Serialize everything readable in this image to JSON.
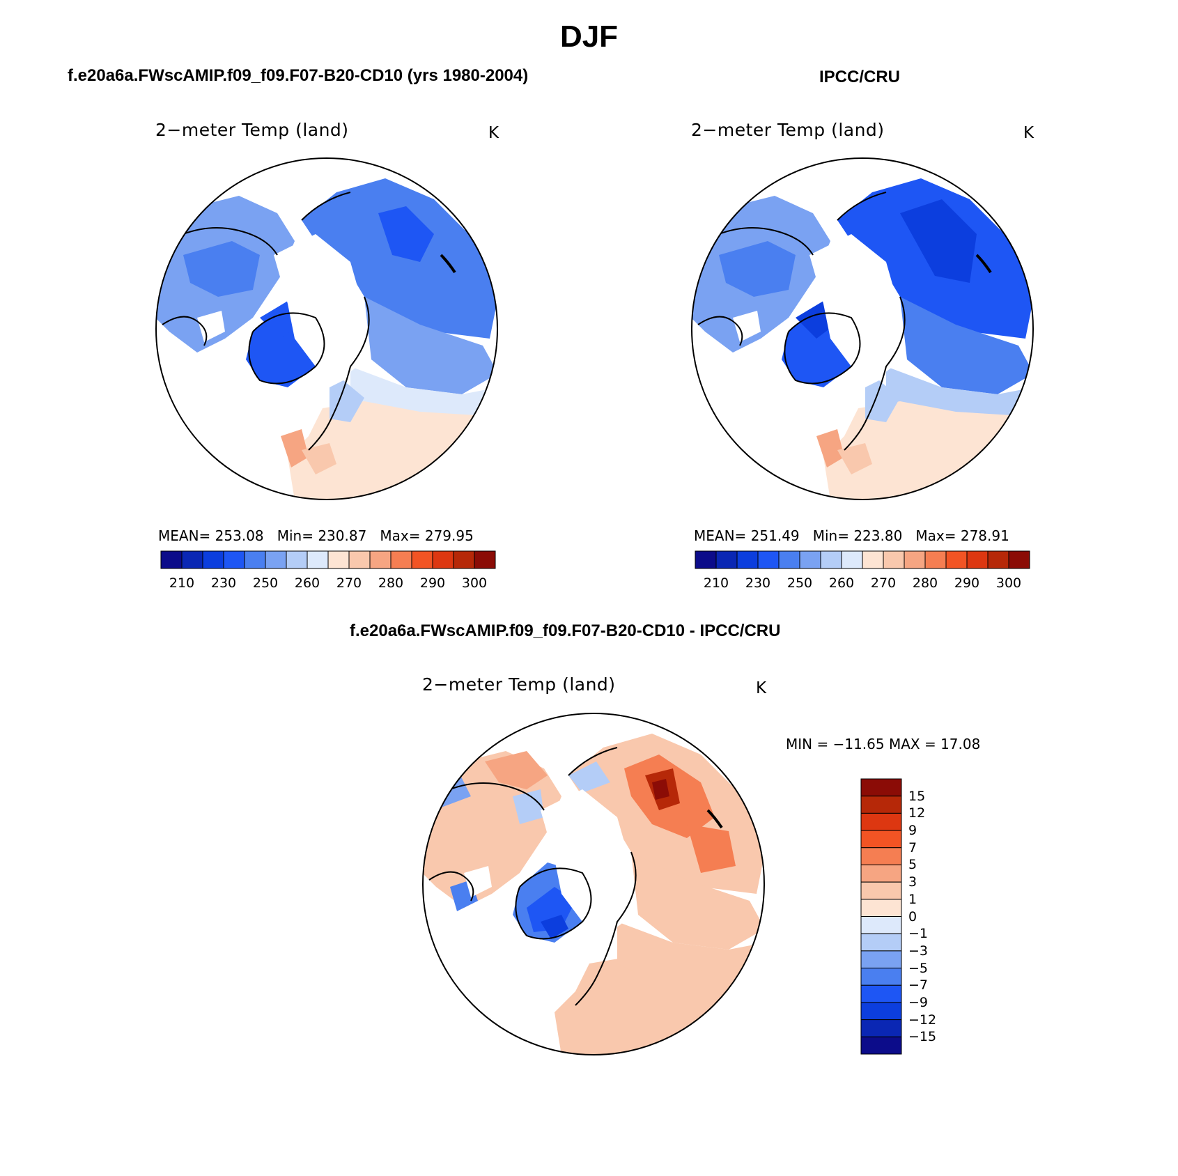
{
  "title": "DJF",
  "variable": "2−meter Temp (land)",
  "units": "K",
  "panels": {
    "model": {
      "title": "f.e20a6a.FWscAMIP.f09_f09.F07-B20-CD10 (yrs 1980-2004)",
      "stats": {
        "mean_label": "MEAN=",
        "mean": "253.08",
        "min_label": "Min=",
        "min": "230.87",
        "max_label": "Max=",
        "max": "279.95"
      }
    },
    "obs": {
      "title": "IPCC/CRU",
      "stats": {
        "mean_label": "MEAN=",
        "mean": "251.49",
        "min_label": "Min=",
        "min": "223.80",
        "max_label": "Max=",
        "max": "278.91"
      }
    },
    "diff": {
      "title": "f.e20a6a.FWscAMIP.f09_f09.F07-B20-CD10 - IPCC/CRU",
      "minmax": "MIN = −11.65 MAX =   17.08"
    }
  },
  "colorbars": {
    "absolute": {
      "colors": [
        "#0c0c8a",
        "#0a27b4",
        "#0c3ede",
        "#1e56f4",
        "#4a7ff0",
        "#7aa2f2",
        "#b4cdf7",
        "#dde9fb",
        "#fde4d3",
        "#f9c8ad",
        "#f6a582",
        "#f57e52",
        "#f25424",
        "#dd3711",
        "#b62808",
        "#8b0c06"
      ],
      "labels": [
        "210",
        "230",
        "250",
        "260",
        "270",
        "280",
        "290",
        "300"
      ]
    },
    "difference": {
      "colors": [
        "#8b0c06",
        "#b62808",
        "#dd3711",
        "#f25424",
        "#f57e52",
        "#f6a582",
        "#f9c8ad",
        "#fde4d3",
        "#dde9fb",
        "#b4cdf7",
        "#7aa2f2",
        "#4a7ff0",
        "#1e56f4",
        "#0c3ede",
        "#0a27b4",
        "#0c0c8a"
      ],
      "labels": [
        "15",
        "12",
        "9",
        "7",
        "5",
        "3",
        "1",
        "0",
        "−1",
        "−3",
        "−5",
        "−7",
        "−9",
        "−12",
        "−15"
      ]
    }
  }
}
